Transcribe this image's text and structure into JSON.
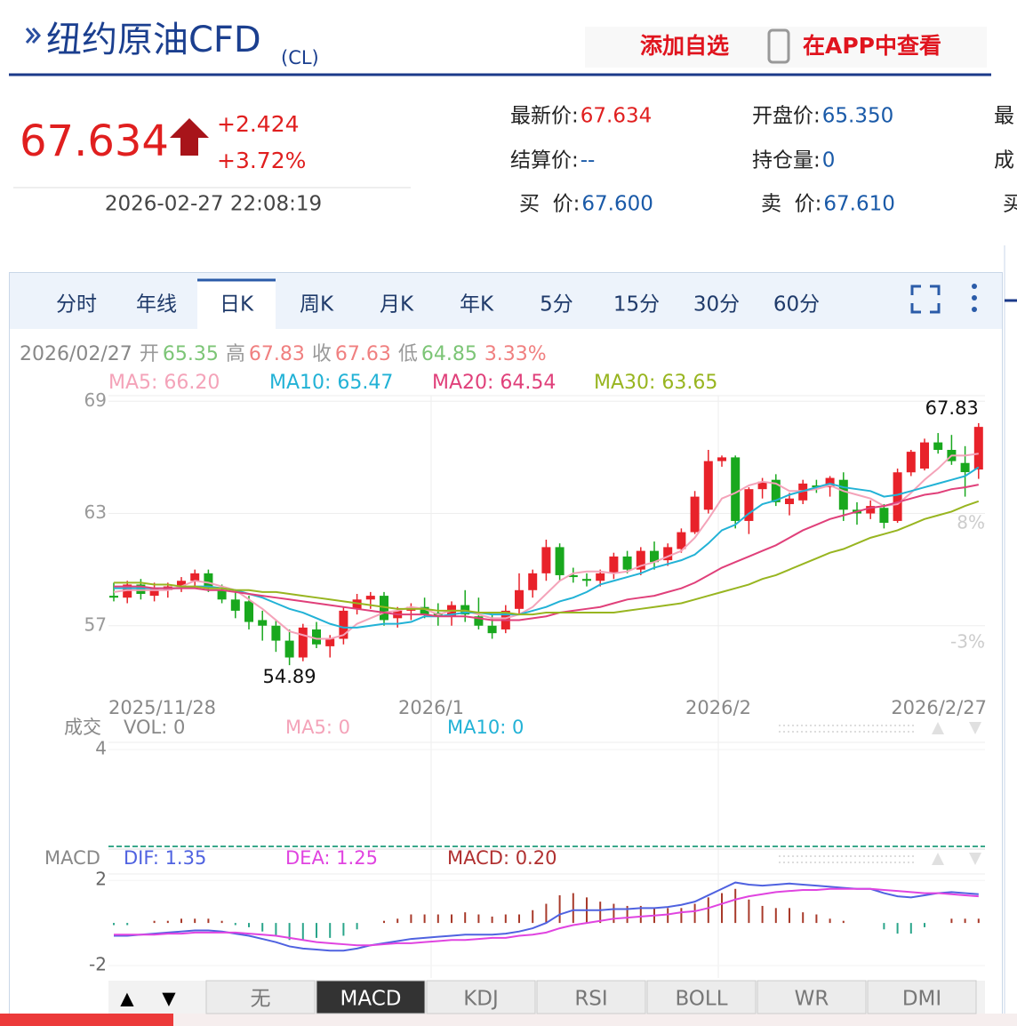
{
  "header": {
    "title": "纽约原油CFD",
    "code": "(CL)",
    "add_watch": "添加自选",
    "app_view": "在APP中查看"
  },
  "quote": {
    "price": "67.634",
    "change": "+2.424",
    "change_pct": "+3.72%",
    "time": "2026-02-27 22:08:19",
    "fields": [
      [
        {
          "label": "最新价:",
          "value": "67.634",
          "color": "#e01f1f"
        },
        {
          "label": "开盘价:",
          "value": "65.350"
        },
        {
          "label": "最"
        }
      ],
      [
        {
          "label": "结算价:",
          "value": "--"
        },
        {
          "label": "持仓量:",
          "value": "0"
        },
        {
          "label": "成"
        }
      ],
      [
        {
          "label": "买  价:",
          "value": "67.600"
        },
        {
          "label": "卖  价:",
          "value": "67.610"
        },
        {
          "label": "买"
        }
      ]
    ]
  },
  "tabs": [
    "分时",
    "年线",
    "日K",
    "周K",
    "月K",
    "年K",
    "5分",
    "15分",
    "30分",
    "60分"
  ],
  "active_tab": "日K",
  "chart_data": [
    {
      "type": "candlestick",
      "info": {
        "date": "2026/02/27",
        "items": [
          {
            "label": "开",
            "value": "65.35",
            "color": "#7cc576"
          },
          {
            "label": "高",
            "value": "67.83",
            "color": "#f08080"
          },
          {
            "label": "收",
            "value": "67.63",
            "color": "#f08080"
          },
          {
            "label": "低",
            "value": "64.85",
            "color": "#7cc576"
          }
        ],
        "amplitude": "3.33%"
      },
      "up_color": "#e8222a",
      "down_color": "#19a81e",
      "candles": [
        [
          58.6,
          59.3,
          58.3,
          58.5
        ],
        [
          58.5,
          59.4,
          58.2,
          59.2
        ],
        [
          59.2,
          59.5,
          58.4,
          58.7
        ],
        [
          58.6,
          59.3,
          58.3,
          59.0
        ],
        [
          58.9,
          59.3,
          58.5,
          59.1
        ],
        [
          59.1,
          59.6,
          58.8,
          59.4
        ],
        [
          59.4,
          60.0,
          59.0,
          59.8
        ],
        [
          59.8,
          60.0,
          58.8,
          59.0
        ],
        [
          58.9,
          59.2,
          58.2,
          58.4
        ],
        [
          58.4,
          58.9,
          57.4,
          57.8
        ],
        [
          58.3,
          58.6,
          56.8,
          57.2
        ],
        [
          57.3,
          57.8,
          56.2,
          57.0
        ],
        [
          57.0,
          57.3,
          55.6,
          56.2
        ],
        [
          56.2,
          56.8,
          54.89,
          55.3
        ],
        [
          55.3,
          57.1,
          55.1,
          56.9
        ],
        [
          56.8,
          57.2,
          55.8,
          56.0
        ],
        [
          55.9,
          56.5,
          55.3,
          56.3
        ],
        [
          56.3,
          58.0,
          56.0,
          57.8
        ],
        [
          57.9,
          58.7,
          57.6,
          58.4
        ],
        [
          58.4,
          58.8,
          57.9,
          58.6
        ],
        [
          58.6,
          58.8,
          57.0,
          57.3
        ],
        [
          57.4,
          58.0,
          56.9,
          57.8
        ],
        [
          57.8,
          58.2,
          57.3,
          58.0
        ],
        [
          58.0,
          58.5,
          57.4,
          57.6
        ],
        [
          57.7,
          58.2,
          57.0,
          57.5
        ],
        [
          57.5,
          58.3,
          57.0,
          58.1
        ],
        [
          58.1,
          58.9,
          57.2,
          57.6
        ],
        [
          57.5,
          58.5,
          56.8,
          57.0
        ],
        [
          57.0,
          57.6,
          56.3,
          56.6
        ],
        [
          56.8,
          58.1,
          56.6,
          57.8
        ],
        [
          57.9,
          59.8,
          57.6,
          58.9
        ],
        [
          58.9,
          60.0,
          58.5,
          59.8
        ],
        [
          59.8,
          61.6,
          59.4,
          61.2
        ],
        [
          61.2,
          61.4,
          59.4,
          59.7
        ],
        [
          59.7,
          60.1,
          59.3,
          59.6
        ],
        [
          59.5,
          59.8,
          59.1,
          59.4
        ],
        [
          59.4,
          60.0,
          59.1,
          59.8
        ],
        [
          59.8,
          60.9,
          59.5,
          60.7
        ],
        [
          60.7,
          61.0,
          59.8,
          60.0
        ],
        [
          60.0,
          61.2,
          59.7,
          61.0
        ],
        [
          61.0,
          61.5,
          60.0,
          60.4
        ],
        [
          60.5,
          61.4,
          60.2,
          61.2
        ],
        [
          61.1,
          62.2,
          60.9,
          62.0
        ],
        [
          62.0,
          64.2,
          61.9,
          63.9
        ],
        [
          63.2,
          66.4,
          63.0,
          65.8
        ],
        [
          65.8,
          66.1,
          65.5,
          66.0
        ],
        [
          66.0,
          66.1,
          62.2,
          62.6
        ],
        [
          62.6,
          64.4,
          61.9,
          64.3
        ],
        [
          64.3,
          64.9,
          63.8,
          64.7
        ],
        [
          64.8,
          65.1,
          63.4,
          63.6
        ],
        [
          63.5,
          64.1,
          62.9,
          63.8
        ],
        [
          63.7,
          64.8,
          63.5,
          64.6
        ],
        [
          64.5,
          64.8,
          64.1,
          64.4
        ],
        [
          64.4,
          65.0,
          63.9,
          64.9
        ],
        [
          64.8,
          65.2,
          62.6,
          63.2
        ],
        [
          63.2,
          63.6,
          62.4,
          63.0
        ],
        [
          63.0,
          63.7,
          62.7,
          63.4
        ],
        [
          63.3,
          63.5,
          62.2,
          62.5
        ],
        [
          62.6,
          65.4,
          62.5,
          65.2
        ],
        [
          65.2,
          66.4,
          65.0,
          66.3
        ],
        [
          65.4,
          67.0,
          65.3,
          66.8
        ],
        [
          66.8,
          67.3,
          66.2,
          66.4
        ],
        [
          66.4,
          67.2,
          65.6,
          65.8
        ],
        [
          65.7,
          66.6,
          63.9,
          65.21
        ],
        [
          65.35,
          67.83,
          64.85,
          67.63
        ]
      ],
      "ma_series": [
        {
          "legend": "MA5: 66.20",
          "color": "#f4a3b9",
          "values": [
            58.8,
            58.9,
            58.9,
            58.9,
            58.9,
            59.1,
            59.4,
            59.3,
            59.1,
            58.9,
            58.4,
            57.9,
            57.3,
            56.7,
            56.5,
            56.3,
            56.3,
            56.5,
            57.1,
            57.4,
            57.7,
            57.8,
            58.0,
            57.9,
            57.6,
            57.8,
            57.8,
            57.6,
            57.4,
            57.4,
            57.6,
            58.0,
            58.7,
            59.4,
            59.8,
            59.9,
            59.9,
            59.8,
            59.9,
            60.2,
            60.4,
            60.7,
            61.0,
            61.7,
            62.7,
            63.8,
            64.1,
            64.5,
            64.7,
            64.6,
            64.2,
            64.2,
            64.3,
            64.5,
            64.2,
            64.0,
            63.8,
            63.4,
            63.5,
            64.1,
            64.8,
            65.4,
            66.1,
            66.1,
            66.2
          ]
        },
        {
          "legend": "MA10: 65.47",
          "color": "#22b2d6",
          "values": [
            59.0,
            59.0,
            59.0,
            59.0,
            59.0,
            59.0,
            59.1,
            59.1,
            59.0,
            58.9,
            58.7,
            58.5,
            58.2,
            57.9,
            57.7,
            57.4,
            57.1,
            56.9,
            56.9,
            57.0,
            57.1,
            57.1,
            57.2,
            57.5,
            57.5,
            57.6,
            57.7,
            57.7,
            57.6,
            57.6,
            57.6,
            57.8,
            58.0,
            58.3,
            58.5,
            58.8,
            59.2,
            59.4,
            59.6,
            59.8,
            60.1,
            60.3,
            60.5,
            60.8,
            61.4,
            62.1,
            62.4,
            63.0,
            63.5,
            63.7,
            64.0,
            64.2,
            64.4,
            64.6,
            64.4,
            64.3,
            64.2,
            63.9,
            64.0,
            64.2,
            64.4,
            64.6,
            64.8,
            65.0,
            65.47
          ]
        },
        {
          "legend": "MA20: 64.54",
          "color": "#e0407a",
          "values": [
            59.1,
            59.1,
            59.1,
            59.0,
            59.0,
            59.0,
            59.0,
            58.9,
            58.9,
            58.8,
            58.7,
            58.6,
            58.5,
            58.4,
            58.3,
            58.2,
            58.1,
            58.0,
            57.9,
            57.8,
            57.7,
            57.6,
            57.6,
            57.6,
            57.5,
            57.5,
            57.5,
            57.4,
            57.3,
            57.3,
            57.3,
            57.4,
            57.5,
            57.7,
            57.8,
            57.9,
            58.0,
            58.2,
            58.4,
            58.5,
            58.6,
            58.8,
            59.0,
            59.3,
            59.7,
            60.1,
            60.4,
            60.7,
            61.0,
            61.3,
            61.7,
            62.1,
            62.4,
            62.7,
            62.9,
            63.1,
            63.3,
            63.4,
            63.6,
            63.8,
            64.0,
            64.1,
            64.3,
            64.4,
            64.54
          ]
        },
        {
          "legend": "MA30: 63.65",
          "color": "#98b520",
          "values": [
            59.3,
            59.3,
            59.3,
            59.2,
            59.2,
            59.1,
            59.1,
            59.0,
            59.0,
            58.9,
            58.9,
            58.8,
            58.8,
            58.7,
            58.6,
            58.5,
            58.4,
            58.3,
            58.2,
            58.1,
            58.0,
            57.9,
            57.9,
            57.9,
            57.8,
            57.8,
            57.8,
            57.7,
            57.7,
            57.7,
            57.6,
            57.6,
            57.7,
            57.7,
            57.7,
            57.7,
            57.7,
            57.7,
            57.8,
            57.9,
            58.0,
            58.1,
            58.2,
            58.4,
            58.6,
            58.8,
            59.0,
            59.2,
            59.5,
            59.7,
            60.0,
            60.3,
            60.6,
            60.9,
            61.1,
            61.4,
            61.7,
            61.9,
            62.1,
            62.4,
            62.7,
            62.9,
            63.1,
            63.4,
            63.65
          ]
        }
      ],
      "ylim": [
        52.9,
        69.3
      ],
      "yticks": [
        57,
        63,
        69
      ],
      "y2lim": [
        -8.5,
        19.8
      ],
      "y2ticks": [
        {
          "value": 8,
          "label": "8%"
        },
        {
          "value": -3,
          "label": "-3%"
        }
      ],
      "x_labels": [
        "2025/11/28",
        "2026/1",
        "2026/2",
        "2026/2/27"
      ]
    },
    {
      "type": "volume",
      "label": "成交",
      "legend": [
        {
          "text": "VOL: 0",
          "color": "#888"
        },
        {
          "text": "MA5: 0",
          "color": "#f4a3b9"
        },
        {
          "text": "MA10: 0",
          "color": "#22b2d6"
        }
      ],
      "ylim": [
        0,
        4.3
      ],
      "yticks": [
        4
      ]
    },
    {
      "type": "macd",
      "label": "MACD",
      "ylim": [
        -2.5,
        2.3
      ],
      "yticks": [
        2,
        -2
      ],
      "series": [
        {
          "legend": "DIF: 1.35",
          "color": "#4f62e0",
          "values": [
            -0.6,
            -0.6,
            -0.55,
            -0.5,
            -0.45,
            -0.4,
            -0.35,
            -0.35,
            -0.4,
            -0.5,
            -0.6,
            -0.75,
            -0.9,
            -1.1,
            -1.2,
            -1.25,
            -1.3,
            -1.3,
            -1.2,
            -1.05,
            -0.95,
            -0.85,
            -0.75,
            -0.7,
            -0.65,
            -0.6,
            -0.55,
            -0.55,
            -0.55,
            -0.5,
            -0.4,
            -0.25,
            0.0,
            0.4,
            0.6,
            0.6,
            0.6,
            0.65,
            0.65,
            0.7,
            0.7,
            0.75,
            0.85,
            1.0,
            1.3,
            1.6,
            1.9,
            1.8,
            1.75,
            1.8,
            1.85,
            1.8,
            1.75,
            1.7,
            1.65,
            1.6,
            1.6,
            1.4,
            1.25,
            1.2,
            1.3,
            1.4,
            1.45,
            1.4,
            1.35
          ]
        },
        {
          "legend": "DEA: 1.25",
          "color": "#e044e0",
          "values": [
            -0.55,
            -0.55,
            -0.55,
            -0.55,
            -0.5,
            -0.5,
            -0.45,
            -0.45,
            -0.45,
            -0.45,
            -0.5,
            -0.55,
            -0.6,
            -0.7,
            -0.8,
            -0.9,
            -0.95,
            -1.0,
            -1.05,
            -1.05,
            -1.0,
            -0.95,
            -0.95,
            -0.9,
            -0.85,
            -0.8,
            -0.8,
            -0.75,
            -0.7,
            -0.7,
            -0.6,
            -0.55,
            -0.45,
            -0.25,
            -0.1,
            0.0,
            0.1,
            0.2,
            0.25,
            0.3,
            0.35,
            0.4,
            0.5,
            0.55,
            0.7,
            0.9,
            1.1,
            1.25,
            1.35,
            1.45,
            1.5,
            1.55,
            1.55,
            1.6,
            1.6,
            1.6,
            1.6,
            1.55,
            1.5,
            1.45,
            1.4,
            1.4,
            1.35,
            1.3,
            1.25
          ]
        }
      ],
      "histogram": {
        "legend": "MACD: 0.20",
        "legend_color": "#b03030",
        "up_color": "#a83a2a",
        "down_color": "#2aa58a",
        "values": [
          -0.1,
          -0.1,
          0,
          0.1,
          0.1,
          0.2,
          0.2,
          0.2,
          0.1,
          -0.1,
          -0.2,
          -0.4,
          -0.6,
          -0.8,
          -0.8,
          -0.7,
          -0.7,
          -0.6,
          -0.3,
          0,
          0.1,
          0.2,
          0.4,
          0.4,
          0.4,
          0.4,
          0.5,
          0.4,
          0.3,
          0.4,
          0.4,
          0.6,
          0.9,
          1.3,
          1.4,
          1.2,
          1.0,
          0.9,
          0.8,
          0.8,
          0.7,
          0.7,
          0.7,
          0.9,
          1.2,
          1.4,
          1.6,
          1.1,
          0.8,
          0.7,
          0.7,
          0.5,
          0.4,
          0.2,
          0.1,
          0,
          0,
          -0.3,
          -0.5,
          -0.5,
          -0.2,
          0,
          0.2,
          0.2,
          0.2
        ]
      }
    }
  ],
  "arrows": [
    "▲",
    "▼"
  ],
  "indicator_tabs": [
    "无",
    "MACD",
    "KDJ",
    "RSI",
    "BOLL",
    "WR",
    "DMI"
  ],
  "active_indicator": "MACD"
}
